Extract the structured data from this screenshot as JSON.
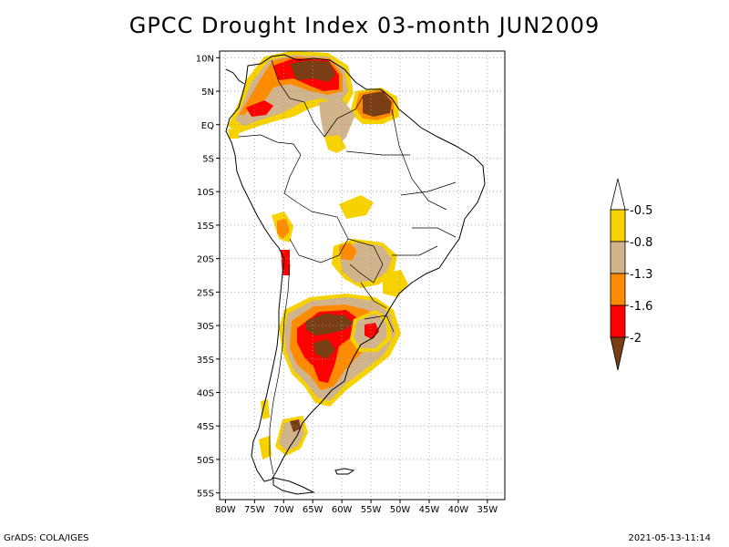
{
  "title": "GPCC Drought Index 03-month JUN2009",
  "footer": {
    "left": "GrADS: COLA/IGES",
    "right": "2021-05-13-11:14"
  },
  "map": {
    "lon_range": [
      -81,
      -32
    ],
    "lat_range": [
      -56,
      11
    ],
    "lat_ticks": [
      {
        "value": 10,
        "label": "10N"
      },
      {
        "value": 5,
        "label": "5N"
      },
      {
        "value": 0,
        "label": "EQ"
      },
      {
        "value": -5,
        "label": "5S"
      },
      {
        "value": -10,
        "label": "10S"
      },
      {
        "value": -15,
        "label": "15S"
      },
      {
        "value": -20,
        "label": "20S"
      },
      {
        "value": -25,
        "label": "25S"
      },
      {
        "value": -30,
        "label": "30S"
      },
      {
        "value": -35,
        "label": "35S"
      },
      {
        "value": -40,
        "label": "40S"
      },
      {
        "value": -45,
        "label": "45S"
      },
      {
        "value": -50,
        "label": "50S"
      },
      {
        "value": -55,
        "label": "55S"
      }
    ],
    "lon_ticks": [
      {
        "value": -80,
        "label": "80W"
      },
      {
        "value": -75,
        "label": "75W"
      },
      {
        "value": -70,
        "label": "70W"
      },
      {
        "value": -65,
        "label": "65W"
      },
      {
        "value": -60,
        "label": "60W"
      },
      {
        "value": -55,
        "label": "55W"
      },
      {
        "value": -50,
        "label": "50W"
      },
      {
        "value": -45,
        "label": "45W"
      },
      {
        "value": -40,
        "label": "40W"
      },
      {
        "value": -35,
        "label": "35W"
      }
    ]
  },
  "colorbar": {
    "levels": [
      {
        "label": "-0.5",
        "color": "#f5d200"
      },
      {
        "label": "-0.8",
        "color": "#d2b48c"
      },
      {
        "label": "-1.3",
        "color": "#ff8c00"
      },
      {
        "label": "-1.6",
        "color": "#ff0000"
      },
      {
        "label": "-2",
        "color": "#7a3e14"
      }
    ],
    "top_color": "#ffffff",
    "bottom_color": "#7a3e14"
  },
  "colors": {
    "yellow": "#f5d200",
    "tan": "#d2b48c",
    "orange": "#ff8c00",
    "red": "#ff0000",
    "brown": "#7a3e14"
  }
}
